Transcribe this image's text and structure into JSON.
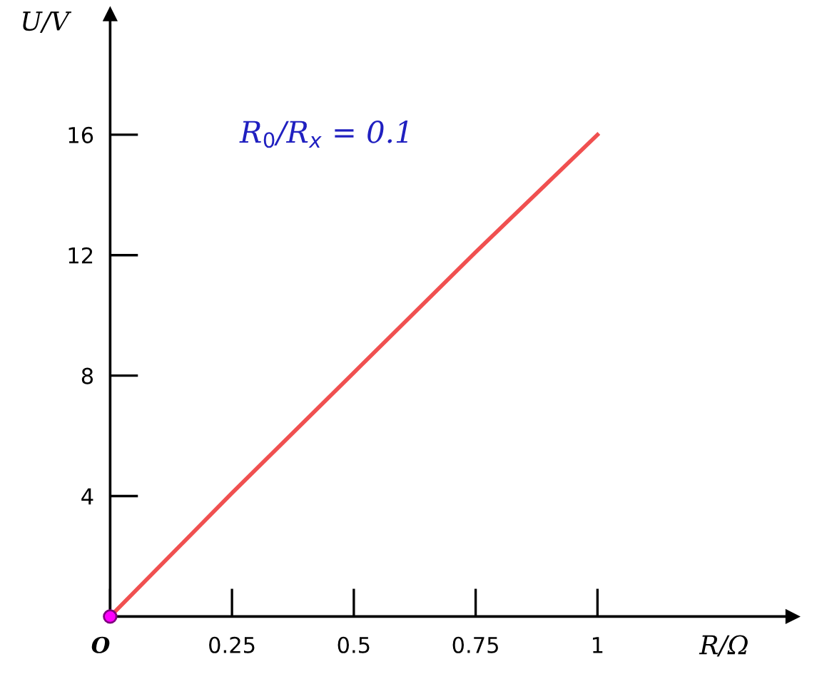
{
  "chart_data": {
    "type": "line",
    "xlabel": "R/Ω",
    "ylabel": "U/V",
    "annotations": [
      "R$_{0}$/R$_{x}$ = 0.1"
    ],
    "series": [
      {
        "color": "#f05050",
        "x": [
          0,
          0.25,
          0.5,
          0.75,
          1
        ],
        "values": [
          0,
          4.1,
          8.1,
          12.1,
          16
        ]
      },
      {
        "type": "scatter",
        "color": "#ff00ff",
        "x": [
          0
        ],
        "values": [
          0
        ],
        "marker": "circle"
      }
    ],
    "xlim": [
      0,
      1.4
    ],
    "ylim": [
      0,
      20
    ],
    "xticks": [
      {
        "value": 0,
        "label": "O"
      },
      0.25,
      0.5,
      0.75,
      1
    ],
    "yticks": [
      4,
      8,
      12,
      16
    ],
    "grid": false
  }
}
